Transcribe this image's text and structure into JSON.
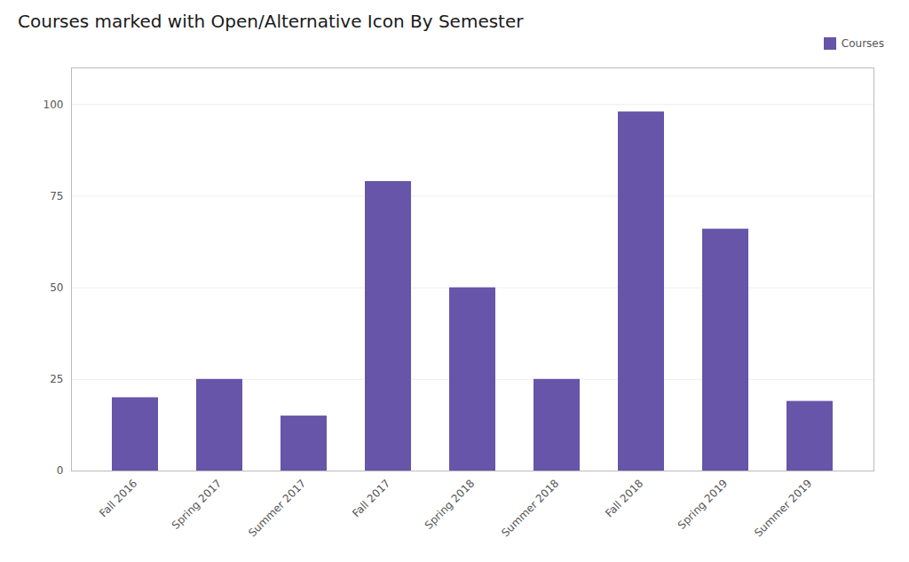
{
  "chart_data": {
    "type": "bar",
    "title": "Courses marked with Open/Alternative Icon By Semester",
    "categories": [
      "Fall 2016",
      "Spring 2017",
      "Summer 2017",
      "Fall 2017",
      "Spring 2018",
      "Summer 2018",
      "Fall 2018",
      "Spring 2019",
      "Summer 2019"
    ],
    "series": [
      {
        "name": "Courses",
        "color": "#6655a8",
        "values": [
          20,
          25,
          15,
          79,
          50,
          25,
          98,
          66,
          19
        ]
      }
    ],
    "ylim": [
      0,
      110
    ],
    "yticks": [
      0,
      25,
      50,
      75,
      100
    ],
    "grid": true,
    "legend": "upper right"
  }
}
